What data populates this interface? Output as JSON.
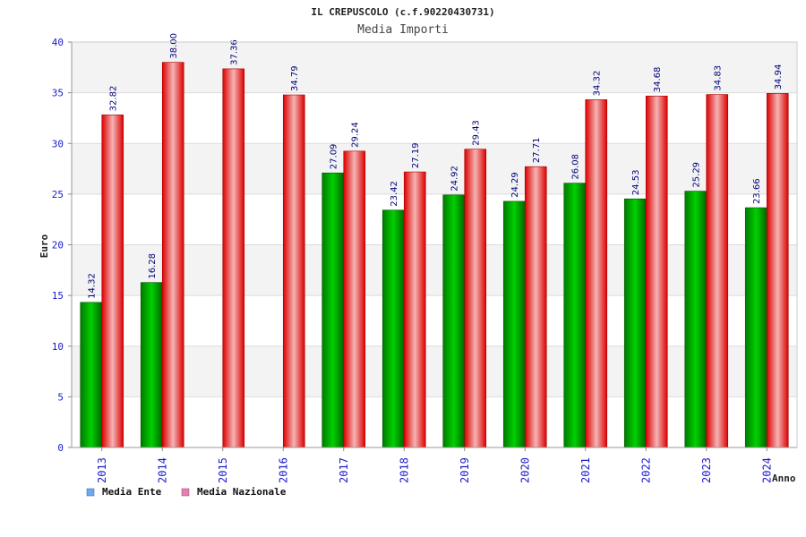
{
  "chart_data": {
    "type": "bar",
    "title": "IL CREPUSCOLO (c.f.90220430731)",
    "subtitle": "Media Importi",
    "xlabel": "Anno",
    "ylabel": "Euro",
    "ylim": [
      0,
      40
    ],
    "yticks": [
      "0",
      "5",
      "10",
      "15",
      "20",
      "25",
      "30",
      "35",
      "40"
    ],
    "grid": true,
    "legend_position": "bottom-left",
    "categories": [
      "2013",
      "2014",
      "2015",
      "2016",
      "2017",
      "2018",
      "2019",
      "2020",
      "2021",
      "2022",
      "2023",
      "2024"
    ],
    "series": [
      {
        "name": "Media Ente",
        "color": "#00aa00",
        "legend_color": "#6fa8f0",
        "values": [
          14.32,
          16.28,
          null,
          null,
          27.09,
          23.42,
          24.92,
          24.29,
          26.08,
          24.53,
          25.29,
          23.66
        ],
        "labels": [
          "14.32",
          "16.28",
          "",
          "",
          "27.09",
          "23.42",
          "24.92",
          "24.29",
          "26.08",
          "24.53",
          "25.29",
          "23.66"
        ]
      },
      {
        "name": "Media Nazionale",
        "color": "#ee1111",
        "legend_color": "#e57fb0",
        "values": [
          32.82,
          38.0,
          37.36,
          34.79,
          29.24,
          27.19,
          29.43,
          27.71,
          34.32,
          34.68,
          34.83,
          34.94
        ],
        "labels": [
          "32.82",
          "38.00",
          "37.36",
          "34.79",
          "29.24",
          "27.19",
          "29.43",
          "27.71",
          "34.32",
          "34.68",
          "34.83",
          "34.94"
        ]
      }
    ]
  }
}
